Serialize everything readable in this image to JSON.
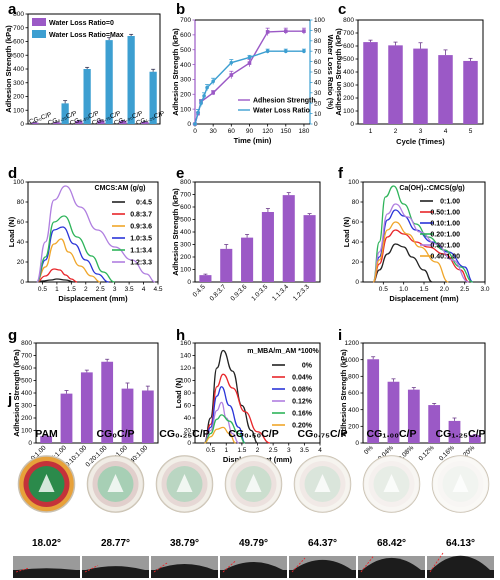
{
  "panel_labels": [
    "a",
    "b",
    "c",
    "d",
    "e",
    "f",
    "g",
    "h",
    "i",
    "j"
  ],
  "colors": {
    "purple": "#9b59c6",
    "blue": "#3d9fd1",
    "black": "#222222",
    "red": "#e8262a",
    "orange": "#f0a62a",
    "dblue": "#2b35d8",
    "green": "#2eb45a",
    "violet": "#b07fe0",
    "axis_b": "#9b59c6",
    "axis_b_right": "#3d9fd1"
  },
  "chart_data": [
    {
      "id": "a",
      "type": "bar",
      "ylabel": "Adhesion Strength (kPa)",
      "ylim": [
        0,
        800
      ],
      "yticks": [
        0,
        100,
        200,
        300,
        400,
        500,
        600,
        700,
        800
      ],
      "categories": [
        "CG₀C/P",
        "CG₀.₂₅C/P",
        "CG₀.₅₀C/P",
        "CG₀.₇₅C/P",
        "CG₁.₀₀C/P",
        "CG₁.₂₅C/P"
      ],
      "series": [
        {
          "name": "Water Loss Ratio=0",
          "values": [
            10,
            12,
            22,
            25,
            22,
            15
          ],
          "errors": [
            3,
            3,
            5,
            5,
            5,
            4
          ]
        },
        {
          "name": "Water Loss Ratio=Max",
          "values": [
            0,
            150,
            400,
            610,
            640,
            380
          ],
          "errors": [
            0,
            20,
            12,
            18,
            12,
            18
          ]
        }
      ]
    },
    {
      "id": "b",
      "type": "line",
      "xlabel": "Time (min)",
      "ylabel": "Adhesion Strength (kPa)",
      "y2label": "Water Loss Ratio (%)",
      "xlim": [
        0,
        190
      ],
      "xticks": [
        0,
        30,
        60,
        90,
        120,
        150,
        180
      ],
      "ylim": [
        0,
        700
      ],
      "yticks": [
        0,
        100,
        200,
        300,
        400,
        500,
        600,
        700
      ],
      "y2lim": [
        0,
        100
      ],
      "y2ticks": [
        0,
        10,
        20,
        30,
        40,
        50,
        60,
        70,
        80,
        90,
        100
      ],
      "series": [
        {
          "name": "Adhesion Strength",
          "axis": "left",
          "x": [
            0,
            5,
            10,
            30,
            60,
            90,
            120,
            150,
            180
          ],
          "y": [
            0,
            70,
            150,
            210,
            330,
            410,
            620,
            625,
            625
          ],
          "errors": [
            0,
            10,
            15,
            15,
            25,
            25,
            25,
            20,
            20
          ]
        },
        {
          "name": "Water Loss Ratio",
          "axis": "right",
          "x": [
            0,
            5,
            10,
            15,
            20,
            30,
            60,
            90,
            120,
            150,
            180
          ],
          "y": [
            0,
            11,
            20,
            27,
            35,
            41,
            59,
            64,
            70,
            70,
            70
          ],
          "errors": [
            0,
            3,
            3,
            3,
            3,
            3,
            3,
            2,
            2,
            2,
            2
          ]
        }
      ]
    },
    {
      "id": "c",
      "type": "bar",
      "xlabel": "Cycle (Times)",
      "ylabel": "Adhesion Strength (kPa)",
      "ylim": [
        0,
        800
      ],
      "yticks": [
        0,
        100,
        200,
        300,
        400,
        500,
        600,
        700,
        800
      ],
      "categories": [
        "1",
        "2",
        "3",
        "4",
        "5"
      ],
      "values": [
        630,
        605,
        580,
        530,
        485
      ],
      "errors": [
        15,
        25,
        45,
        40,
        20
      ]
    },
    {
      "id": "d",
      "type": "line",
      "title": "CMCS:AM (g/g)",
      "xlabel": "Displacement (mm)",
      "ylabel": "Load (N)",
      "xlim": [
        0,
        4.5
      ],
      "xticks": [
        0.5,
        1.0,
        1.5,
        2.0,
        2.5,
        3.0,
        3.5,
        4.0,
        4.5
      ],
      "xticklabels": [
        "0.5",
        "1",
        "1.5",
        "2",
        "2.5",
        "3",
        "3.5",
        "4",
        "4.5"
      ],
      "ylim": [
        0,
        100
      ],
      "yticks": [
        0,
        20,
        40,
        60,
        80,
        100
      ],
      "series": [
        {
          "name": "0:4.5",
          "color": "#222222",
          "x": [
            0.3,
            0.5,
            0.8,
            1.0,
            1.3,
            1.6
          ],
          "y": [
            0,
            1,
            2,
            3,
            2,
            0
          ]
        },
        {
          "name": "0.8:3.7",
          "color": "#e8262a",
          "x": [
            0.3,
            0.6,
            0.9,
            1.1,
            1.3,
            1.5,
            1.7
          ],
          "y": [
            0,
            6,
            13,
            12,
            7,
            3,
            0
          ]
        },
        {
          "name": "0.9:3.6",
          "color": "#f0a62a",
          "x": [
            0.3,
            0.6,
            0.9,
            1.15,
            1.4,
            1.8,
            2.2,
            2.5
          ],
          "y": [
            0,
            15,
            38,
            43,
            30,
            16,
            6,
            0
          ]
        },
        {
          "name": "1.0:3.5",
          "color": "#2b35d8",
          "x": [
            0.3,
            0.6,
            0.9,
            1.2,
            1.6,
            2.0,
            2.4,
            2.8
          ],
          "y": [
            0,
            22,
            52,
            55,
            38,
            22,
            8,
            0
          ]
        },
        {
          "name": "1.1:3.4",
          "color": "#2eb45a",
          "x": [
            0.3,
            0.6,
            0.9,
            1.25,
            1.7,
            2.2,
            2.6,
            3.0
          ],
          "y": [
            0,
            25,
            60,
            66,
            45,
            26,
            10,
            0
          ]
        },
        {
          "name": "1.2:3.3",
          "color": "#b07fe0",
          "x": [
            0.3,
            0.6,
            0.9,
            1.3,
            1.8,
            2.4,
            3.0,
            3.6,
            4.1,
            4.4
          ],
          "y": [
            0,
            40,
            82,
            96,
            75,
            52,
            35,
            22,
            8,
            0
          ]
        }
      ]
    },
    {
      "id": "e",
      "type": "bar",
      "ylabel": "Adhesion Strength (kPa)",
      "ylim": [
        0,
        800
      ],
      "yticks": [
        0,
        100,
        200,
        300,
        400,
        500,
        600,
        700,
        800
      ],
      "categories": [
        "0:4.5",
        "0.8:3.7",
        "0.9:3.6",
        "1.0:3.5",
        "1.1:3.4",
        "1.2:3.3"
      ],
      "values": [
        55,
        265,
        355,
        560,
        695,
        535
      ],
      "errors": [
        8,
        35,
        25,
        28,
        20,
        12
      ]
    },
    {
      "id": "f",
      "type": "line",
      "title": "Ca(OH)₂:CMCS(g/g)",
      "xlabel": "Displacement (mm)",
      "ylabel": "Load (N)",
      "xlim": [
        0,
        3.0
      ],
      "xticks": [
        0.5,
        1.0,
        1.5,
        2.0,
        2.5,
        3.0
      ],
      "xticklabels": [
        "0.5",
        "1.0",
        "1.5",
        "2.0",
        "2.5",
        "3.0"
      ],
      "ylim": [
        0,
        100
      ],
      "yticks": [
        0,
        20,
        40,
        60,
        80,
        100
      ],
      "series": [
        {
          "name": "0:1.00",
          "color": "#222222",
          "x": [
            0.25,
            0.4,
            0.6,
            0.8,
            1.0,
            1.2,
            1.5,
            1.7
          ],
          "y": [
            0,
            12,
            28,
            38,
            35,
            25,
            12,
            0
          ]
        },
        {
          "name": "0.50:1.00",
          "color": "#e8262a",
          "x": [
            0.25,
            0.4,
            0.6,
            0.8,
            1.0,
            1.3,
            1.6,
            2.0,
            2.4,
            2.6
          ],
          "y": [
            0,
            18,
            45,
            52,
            48,
            40,
            35,
            28,
            12,
            0
          ]
        },
        {
          "name": "0.10:1.00",
          "color": "#2b35d8",
          "x": [
            0.25,
            0.4,
            0.6,
            0.8,
            1.0,
            1.3,
            1.7,
            2.1,
            2.5,
            2.7
          ],
          "y": [
            0,
            25,
            62,
            72,
            66,
            52,
            40,
            30,
            15,
            0
          ]
        },
        {
          "name": "0.20:1.00",
          "color": "#2eb45a",
          "x": [
            0.25,
            0.4,
            0.55,
            0.75,
            1.0,
            1.3,
            1.6,
            2.0,
            2.4,
            2.7
          ],
          "y": [
            0,
            40,
            85,
            96,
            78,
            58,
            45,
            32,
            15,
            0
          ]
        },
        {
          "name": "0.30:1.00",
          "color": "#b07fe0",
          "x": [
            0.25,
            0.4,
            0.6,
            0.8,
            1.1,
            1.4,
            1.8,
            2.2,
            2.6
          ],
          "y": [
            0,
            30,
            68,
            78,
            65,
            50,
            38,
            22,
            0
          ]
        },
        {
          "name": "0.40:1.00",
          "color": "#f0a62a",
          "x": [
            0.25,
            0.4,
            0.6,
            0.8,
            1.1,
            1.4,
            1.8,
            2.1
          ],
          "y": [
            0,
            22,
            52,
            60,
            48,
            35,
            20,
            0
          ]
        }
      ]
    },
    {
      "id": "g",
      "type": "bar",
      "ylabel": "Adhesion Strength (kPa)",
      "ylim": [
        0,
        800
      ],
      "yticks": [
        0,
        100,
        200,
        300,
        400,
        500,
        600,
        700,
        800
      ],
      "categories": [
        "0:1.00",
        "0.05:1.00",
        "0.10:1.00",
        "0.20:1.00",
        "0.30:1.00",
        "0.40:1.00"
      ],
      "values": [
        55,
        395,
        565,
        650,
        435,
        420
      ],
      "errors": [
        5,
        25,
        18,
        20,
        45,
        35
      ]
    },
    {
      "id": "h",
      "type": "line",
      "title": "m_MBA/m_AM *100%",
      "xlabel": "Displacement (mm)",
      "ylabel": "Load (N)",
      "xlim": [
        0,
        4.0
      ],
      "xticks": [
        0.5,
        1.0,
        1.5,
        2.0,
        2.5,
        3.0,
        3.5,
        4.0
      ],
      "ylim": [
        0,
        160
      ],
      "yticks": [
        0,
        20,
        40,
        60,
        80,
        100,
        120,
        140,
        160
      ],
      "series": [
        {
          "name": "0%",
          "color": "#222222",
          "x": [
            0.3,
            0.5,
            0.7,
            0.9,
            1.2,
            1.5,
            1.8,
            2.0
          ],
          "y": [
            0,
            40,
            120,
            148,
            115,
            60,
            20,
            0
          ]
        },
        {
          "name": "0.04%",
          "color": "#e8262a",
          "x": [
            0.3,
            0.5,
            0.7,
            0.9,
            1.2,
            1.6,
            2.0,
            2.4
          ],
          "y": [
            0,
            30,
            90,
            110,
            88,
            50,
            18,
            0
          ]
        },
        {
          "name": "0.08%",
          "color": "#2b35d8",
          "x": [
            0.3,
            0.5,
            0.7,
            0.85,
            1.1,
            1.4,
            1.6
          ],
          "y": [
            0,
            25,
            75,
            90,
            60,
            25,
            0
          ]
        },
        {
          "name": "0.12%",
          "color": "#b07fe0",
          "x": [
            0.3,
            0.5,
            0.7,
            0.85,
            1.0,
            1.2,
            1.4
          ],
          "y": [
            0,
            20,
            52,
            65,
            40,
            15,
            0
          ]
        },
        {
          "name": "0.16%",
          "color": "#2eb45a",
          "x": [
            0.3,
            0.5,
            0.7,
            0.85,
            1.1,
            1.4,
            1.6
          ],
          "y": [
            0,
            15,
            38,
            45,
            35,
            15,
            0
          ]
        },
        {
          "name": "0.20%",
          "color": "#f0a62a",
          "x": [
            0.3,
            0.5,
            0.7,
            0.9,
            1.1,
            1.3
          ],
          "y": [
            0,
            10,
            22,
            25,
            15,
            0
          ]
        }
      ]
    },
    {
      "id": "i",
      "type": "bar",
      "ylabel": "Adhesion Strength (kPa)",
      "ylim": [
        0,
        1200
      ],
      "yticks": [
        0,
        200,
        400,
        600,
        800,
        1000,
        1200
      ],
      "categories": [
        "0%",
        "0.04%",
        "0.08%",
        "0.12%",
        "0.16%",
        "0.20%"
      ],
      "values": [
        1005,
        735,
        640,
        455,
        265,
        95
      ],
      "errors": [
        30,
        35,
        25,
        20,
        35,
        8
      ]
    }
  ],
  "panel_j": {
    "samples": [
      {
        "name": "PAM",
        "angle": "18.02°"
      },
      {
        "name": "CG₀C/P",
        "angle": "28.77°"
      },
      {
        "name": "CG₀.₂₅C/P",
        "angle": "38.79°"
      },
      {
        "name": "CG₀.₅₀C/P",
        "angle": "49.79°"
      },
      {
        "name": "CG₀.₇₅C/P",
        "angle": "64.37°"
      },
      {
        "name": "CG₁.₀₀C/P",
        "angle": "68.42°"
      },
      {
        "name": "CG₁.₂₅C/P",
        "angle": "64.13°"
      }
    ]
  }
}
